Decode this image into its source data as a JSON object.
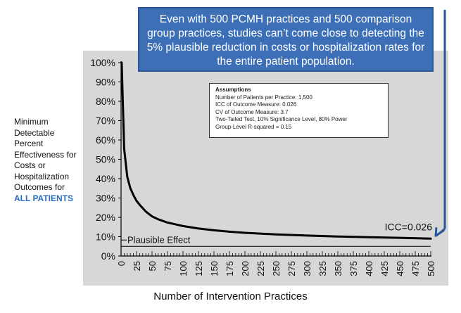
{
  "callout": {
    "text": "Even with 500 PCMH practices and 500 comparison group practices, studies can’t come close to detecting the 5% plausible reduction in costs or hospitalization rates for the entire patient population."
  },
  "ylabel": {
    "lines": [
      "Minimum",
      "Detectable",
      "Percent",
      "Effectiveness for",
      "Costs or",
      "Hospitalization",
      "Outcomes for"
    ],
    "highlight": "ALL PATIENTS",
    "highlight_color": "#2b6cc4"
  },
  "xlabel": "Number of Intervention Practices",
  "assumptions": {
    "title": "Assumptions",
    "items": [
      "Number of Patients per Practice: 1,500",
      "ICC of Outcome Measure: 0.026",
      "CV of Outcome Measure: 3.7",
      "Two-Tailed Test, 10% Significance Level, 80% Power",
      "Group-Level R-squared = 0.15"
    ]
  },
  "chart_data": {
    "type": "line",
    "x_ticks": [
      "0",
      "25",
      "50",
      "75",
      "100",
      "125",
      "150",
      "175",
      "200",
      "225",
      "250",
      "275",
      "300",
      "325",
      "350",
      "375",
      "400",
      "425",
      "450",
      "475",
      "500"
    ],
    "y_ticks": [
      "0%",
      "10%",
      "20%",
      "30%",
      "40%",
      "50%",
      "60%",
      "70%",
      "80%",
      "90%",
      "100%"
    ],
    "xlim": [
      0,
      500
    ],
    "ylim": [
      0,
      100
    ],
    "series": [
      {
        "name": "ICC=0.026",
        "x": [
          1,
          5,
          10,
          15,
          20,
          25,
          30,
          40,
          50,
          60,
          75,
          100,
          125,
          150,
          175,
          200,
          250,
          300,
          350,
          400,
          450,
          500
        ],
        "y": [
          100,
          55.5,
          41,
          35,
          31.5,
          28.5,
          26.5,
          23,
          20.5,
          19,
          17.3,
          15.5,
          14.2,
          13.3,
          12.6,
          12,
          11.2,
          10.6,
          10.1,
          9.7,
          9.4,
          9
        ]
      }
    ],
    "reference_line": {
      "label": "Plausible Effect",
      "y": 5
    },
    "series_label": "ICC=0.026",
    "colors": {
      "line": "#000000",
      "plot_bg": "#d7d7d7",
      "callout": "#3d6fb6",
      "arrow": "#2a5597"
    }
  }
}
